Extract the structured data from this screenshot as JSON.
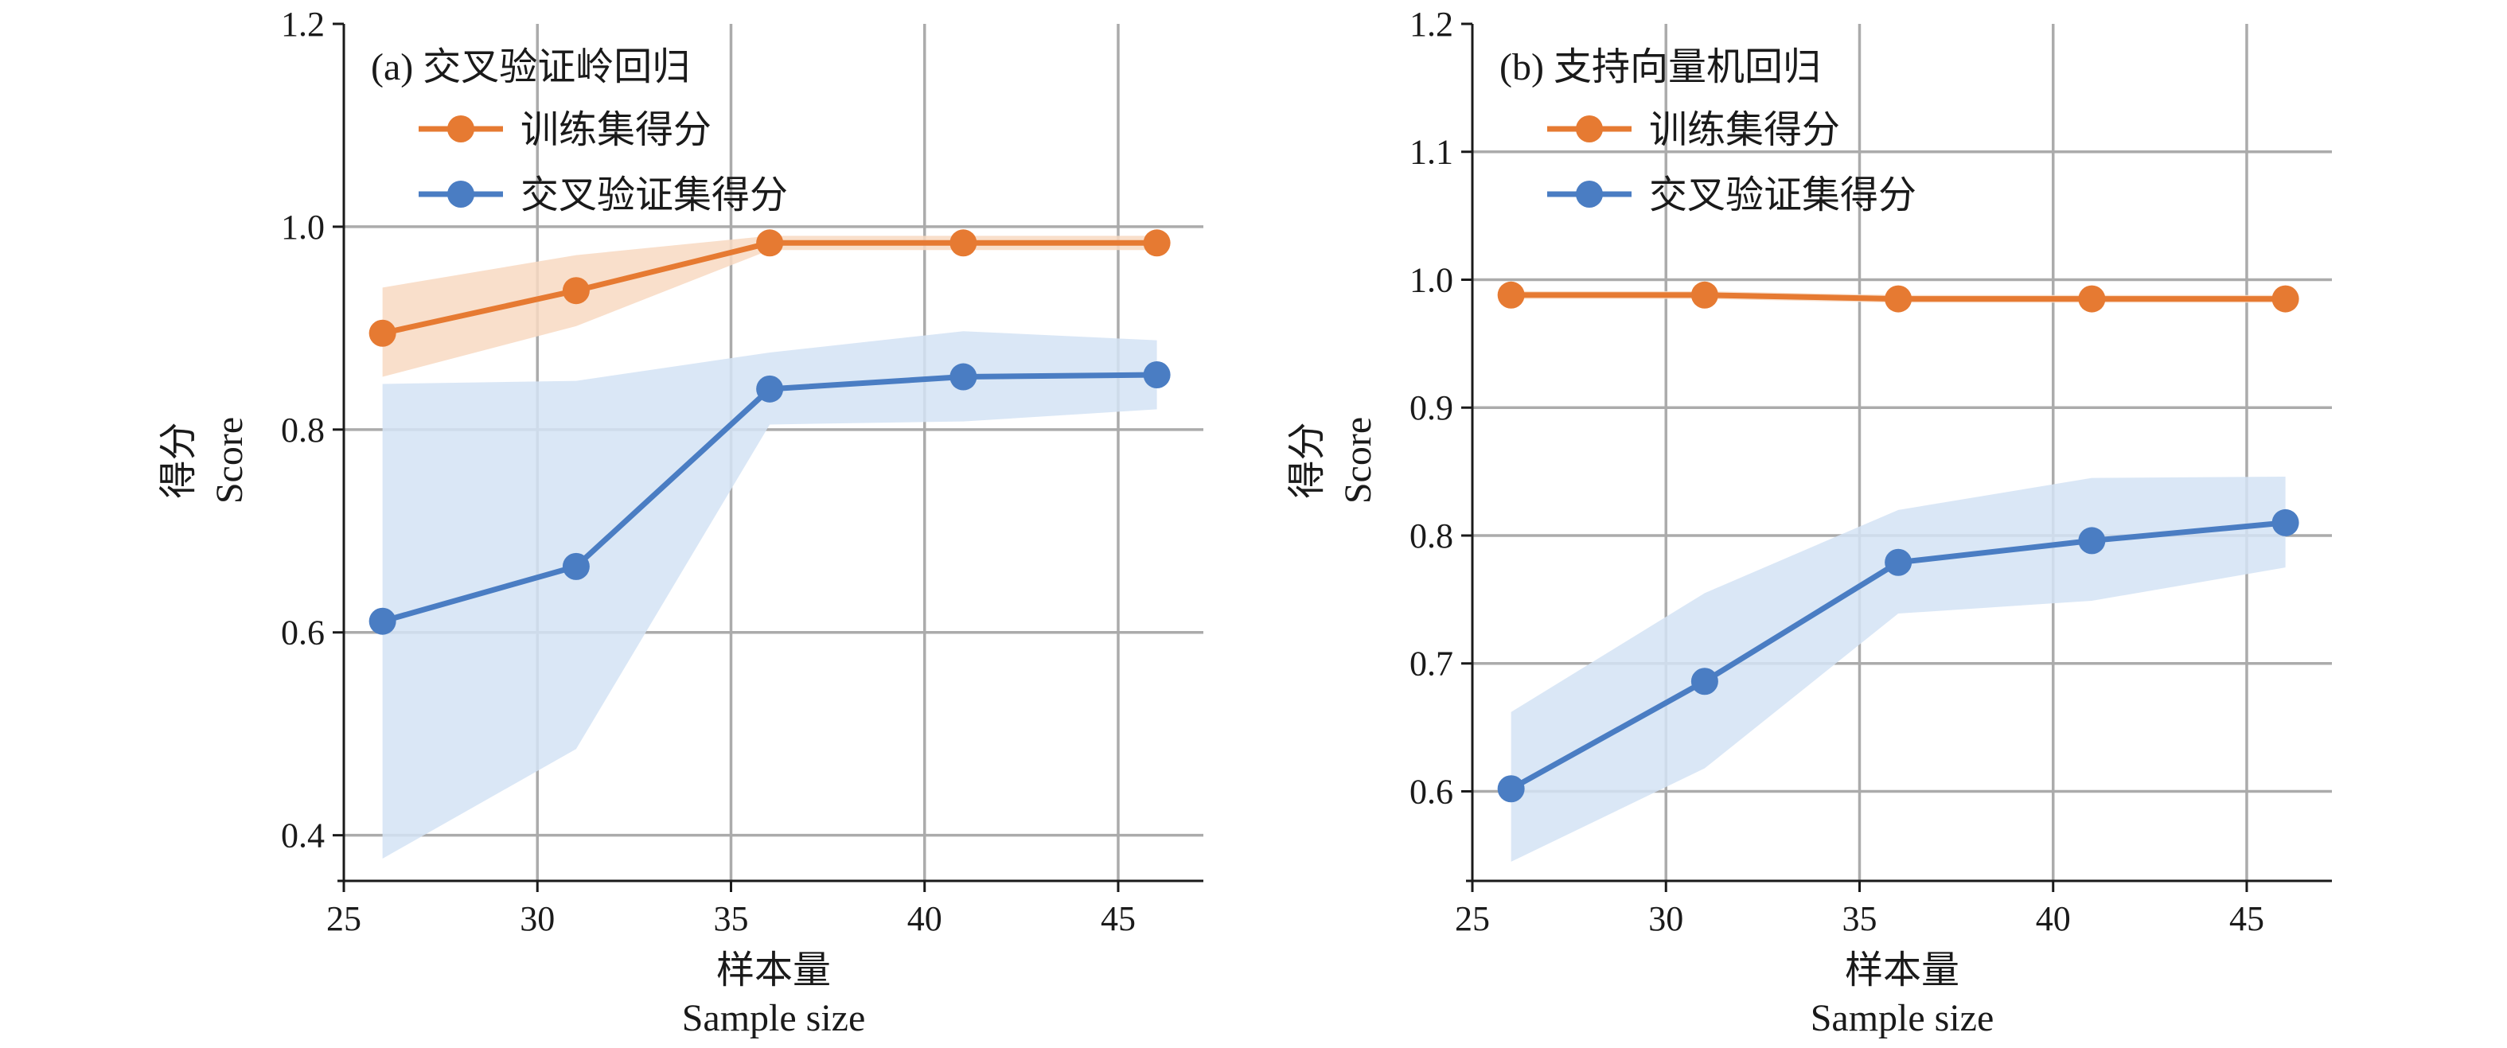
{
  "colors": {
    "train": "#E67A32",
    "train_band": "#F8D9C2",
    "cv": "#4A7DC3",
    "cv_band": "#D3E3F4"
  },
  "chart_data": [
    {
      "type": "line",
      "title": "(a) 交叉验证岭回归",
      "xlabel": "样本量",
      "xlabel_en": "Sample size",
      "ylabel": "得分",
      "ylabel_en": "Score",
      "xlim": [
        25,
        47.2
      ],
      "ylim": [
        0.355,
        1.2
      ],
      "xticks": [
        25,
        30,
        35,
        40,
        45
      ],
      "yticks": [
        0.4,
        0.6,
        0.8,
        1.0,
        1.2
      ],
      "ytick_labels": [
        "0.4",
        "0.6",
        "0.8",
        "1.0",
        "1.2"
      ],
      "grid": true,
      "legend_position": "top-left",
      "x": [
        26,
        31,
        36,
        41,
        46
      ],
      "series": [
        {
          "name": "训练集得分",
          "color": "#E67A32",
          "values": [
            0.895,
            0.937,
            0.984,
            0.984,
            0.984
          ],
          "band_low": [
            0.852,
            0.902,
            0.977,
            0.977,
            0.977
          ],
          "band_high": [
            0.94,
            0.972,
            0.991,
            0.991,
            0.991
          ]
        },
        {
          "name": "交叉验证集得分",
          "color": "#4A7DC3",
          "values": [
            0.611,
            0.665,
            0.84,
            0.852,
            0.854
          ],
          "band_low": [
            0.377,
            0.485,
            0.805,
            0.808,
            0.82
          ],
          "band_high": [
            0.845,
            0.848,
            0.876,
            0.897,
            0.888
          ]
        }
      ]
    },
    {
      "type": "line",
      "title": "(b) 支持向量机回归",
      "xlabel": "样本量",
      "xlabel_en": "Sample size",
      "ylabel": "得分",
      "ylabel_en": "Score",
      "xlim": [
        25,
        47.2
      ],
      "ylim": [
        0.53,
        1.2
      ],
      "xticks": [
        25,
        30,
        35,
        40,
        45
      ],
      "yticks": [
        0.6,
        0.7,
        0.8,
        0.9,
        1.0,
        1.1,
        1.2
      ],
      "ytick_labels": [
        "0.6",
        "0.7",
        "0.8",
        "0.9",
        "1.0",
        "1.1",
        "1.2"
      ],
      "grid": true,
      "legend_position": "top-left",
      "x": [
        26,
        31,
        36,
        41,
        46
      ],
      "series": [
        {
          "name": "训练集得分",
          "color": "#E67A32",
          "values": [
            0.988,
            0.988,
            0.985,
            0.985,
            0.985
          ],
          "band_low": [
            0.985,
            0.985,
            0.982,
            0.982,
            0.982
          ],
          "band_high": [
            0.991,
            0.991,
            0.988,
            0.988,
            0.988
          ]
        },
        {
          "name": "交叉验证集得分",
          "color": "#4A7DC3",
          "values": [
            0.602,
            0.686,
            0.779,
            0.796,
            0.81
          ],
          "band_low": [
            0.545,
            0.618,
            0.739,
            0.749,
            0.775
          ],
          "band_high": [
            0.662,
            0.755,
            0.82,
            0.845,
            0.846
          ]
        }
      ]
    }
  ]
}
